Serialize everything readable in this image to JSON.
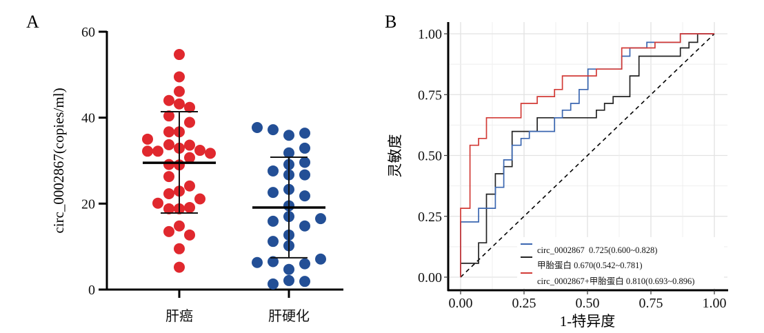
{
  "colors": {
    "liver_cancer": "#e0282e",
    "cirrhosis": "#234f96",
    "roc_circ": "#3a66b0",
    "roc_afp": "#222222",
    "roc_combined": "#d23a36",
    "grid": "#e6e6e6"
  },
  "chart_data": [
    {
      "panel": "A",
      "type": "scatter",
      "subtype": "dot plot with mean ± SD",
      "ylabel": "circ_0002867(copies/ml)",
      "ylim": [
        0,
        60
      ],
      "yticks": [
        "0",
        "20",
        "40",
        "60"
      ],
      "categories": [
        "肝癌",
        "肝硬化"
      ],
      "series": [
        {
          "name": "肝癌",
          "values": [
            54.7,
            49.5,
            46.1,
            44.0,
            43.2,
            42.4,
            40.4,
            38.9,
            36.7,
            36.7,
            35.0,
            32.2,
            32.2,
            33.7,
            32.9,
            33.6,
            32.4,
            31.7,
            30.7,
            29.1,
            29.0,
            26.3,
            24.1,
            22.9,
            22.3,
            21.1,
            20.1,
            18.8,
            18.8,
            19.1,
            14.8,
            13.5,
            12.7,
            9.5,
            5.2
          ],
          "mean": 29.5,
          "sd_upper": 41.4,
          "sd_lower": 17.8
        },
        {
          "name": "肝硬化",
          "values": [
            37.7,
            37.2,
            35.9,
            36.4,
            31.8,
            32.9,
            29.1,
            29.6,
            27.6,
            26.7,
            26.7,
            22.6,
            23.3,
            21.8,
            19.5,
            15.9,
            17.0,
            14.8,
            16.5,
            12.7,
            11.2,
            10.2,
            6.3,
            6.5,
            6.0,
            7.1,
            4.7,
            1.3,
            2.1,
            1.9
          ],
          "mean": 19.1,
          "sd_upper": 30.8,
          "sd_lower": 7.4
        }
      ]
    },
    {
      "panel": "B",
      "type": "line",
      "subtype": "ROC",
      "xlabel": "1-特异度",
      "ylabel": "灵敏度",
      "xlim": [
        0,
        1
      ],
      "ylim": [
        0,
        1
      ],
      "xticks": [
        "0.00",
        "0.25",
        "0.50",
        "0.75",
        "1.00"
      ],
      "yticks": [
        "0.00",
        "0.25",
        "0.50",
        "0.75",
        "1.00"
      ],
      "grid": true,
      "legend_position": "bottom-right",
      "series": [
        {
          "name": "circ_0002867",
          "label": "circ_0002867  0.725(0.600~0.828)",
          "points": [
            [
              0,
              0
            ],
            [
              0,
              0.227
            ],
            [
              0.071,
              0.227
            ],
            [
              0.071,
              0.283
            ],
            [
              0.137,
              0.283
            ],
            [
              0.137,
              0.369
            ],
            [
              0.17,
              0.369
            ],
            [
              0.17,
              0.482
            ],
            [
              0.203,
              0.482
            ],
            [
              0.203,
              0.542
            ],
            [
              0.238,
              0.542
            ],
            [
              0.238,
              0.57
            ],
            [
              0.271,
              0.57
            ],
            [
              0.271,
              0.599
            ],
            [
              0.37,
              0.599
            ],
            [
              0.37,
              0.655
            ],
            [
              0.401,
              0.655
            ],
            [
              0.401,
              0.686
            ],
            [
              0.434,
              0.686
            ],
            [
              0.434,
              0.714
            ],
            [
              0.467,
              0.714
            ],
            [
              0.467,
              0.771
            ],
            [
              0.502,
              0.771
            ],
            [
              0.502,
              0.855
            ],
            [
              0.635,
              0.855
            ],
            [
              0.635,
              0.908
            ],
            [
              0.667,
              0.908
            ],
            [
              0.667,
              0.942
            ],
            [
              0.734,
              0.942
            ],
            [
              0.734,
              0.965
            ],
            [
              0.866,
              0.965
            ],
            [
              0.866,
              1
            ],
            [
              1,
              1
            ]
          ]
        },
        {
          "name": "甲胎蛋白",
          "label": "甲胎蛋白 0.670(0.542~0.781)",
          "points": [
            [
              0,
              0
            ],
            [
              0,
              0.057
            ],
            [
              0.071,
              0.057
            ],
            [
              0.071,
              0.141
            ],
            [
              0.102,
              0.141
            ],
            [
              0.102,
              0.341
            ],
            [
              0.137,
              0.341
            ],
            [
              0.137,
              0.425
            ],
            [
              0.17,
              0.425
            ],
            [
              0.17,
              0.454
            ],
            [
              0.203,
              0.454
            ],
            [
              0.203,
              0.599
            ],
            [
              0.302,
              0.599
            ],
            [
              0.302,
              0.655
            ],
            [
              0.535,
              0.655
            ],
            [
              0.535,
              0.686
            ],
            [
              0.567,
              0.686
            ],
            [
              0.567,
              0.714
            ],
            [
              0.601,
              0.714
            ],
            [
              0.601,
              0.742
            ],
            [
              0.667,
              0.742
            ],
            [
              0.667,
              0.827
            ],
            [
              0.703,
              0.827
            ],
            [
              0.703,
              0.908
            ],
            [
              0.866,
              0.908
            ],
            [
              0.866,
              0.942
            ],
            [
              0.9,
              0.942
            ],
            [
              0.9,
              0.965
            ],
            [
              0.934,
              0.965
            ],
            [
              0.934,
              1
            ],
            [
              1,
              1
            ]
          ]
        },
        {
          "name": "circ_0002867+甲胎蛋白",
          "label": "circ_0002867+甲胎蛋白 0.810(0.693~0.896)",
          "points": [
            [
              0,
              0
            ],
            [
              0,
              0.283
            ],
            [
              0.037,
              0.283
            ],
            [
              0.037,
              0.542
            ],
            [
              0.071,
              0.542
            ],
            [
              0.071,
              0.57
            ],
            [
              0.102,
              0.57
            ],
            [
              0.102,
              0.655
            ],
            [
              0.238,
              0.655
            ],
            [
              0.238,
              0.714
            ],
            [
              0.302,
              0.714
            ],
            [
              0.302,
              0.742
            ],
            [
              0.37,
              0.742
            ],
            [
              0.37,
              0.771
            ],
            [
              0.401,
              0.771
            ],
            [
              0.401,
              0.827
            ],
            [
              0.535,
              0.827
            ],
            [
              0.535,
              0.855
            ],
            [
              0.635,
              0.855
            ],
            [
              0.635,
              0.942
            ],
            [
              0.766,
              0.942
            ],
            [
              0.766,
              0.965
            ],
            [
              0.866,
              0.965
            ],
            [
              0.866,
              1
            ],
            [
              1,
              1
            ]
          ]
        }
      ]
    }
  ]
}
